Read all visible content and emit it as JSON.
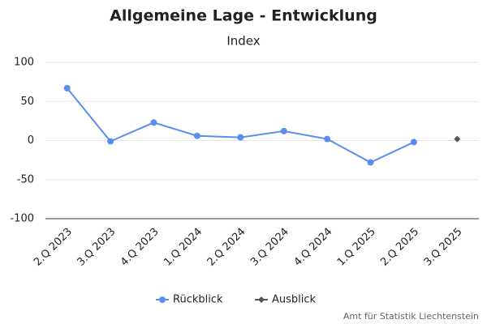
{
  "chart_data": {
    "type": "line",
    "title": "Allgemeine Lage - Entwicklung",
    "subtitle": "Index",
    "categories": [
      "2.Q 2023",
      "3.Q 2023",
      "4.Q 2023",
      "1.Q 2024",
      "2.Q 2024",
      "3.Q 2024",
      "4.Q 2024",
      "1.Q 2025",
      "2.Q 2025",
      "3.Q 2025"
    ],
    "series": [
      {
        "name": "Rückblick",
        "color": "#5b8def",
        "marker": "circle",
        "values": [
          67,
          -1,
          23,
          6,
          4,
          12,
          2,
          -28,
          -2,
          null
        ]
      },
      {
        "name": "Ausblick",
        "color": "#555555",
        "marker": "diamond",
        "values": [
          null,
          null,
          null,
          null,
          null,
          null,
          null,
          null,
          null,
          2
        ]
      }
    ],
    "ylim": [
      -100,
      100
    ],
    "yticks": [
      -100,
      -50,
      0,
      50,
      100
    ],
    "grid": true,
    "credit": "Amt für Statistik Liechtenstein"
  }
}
